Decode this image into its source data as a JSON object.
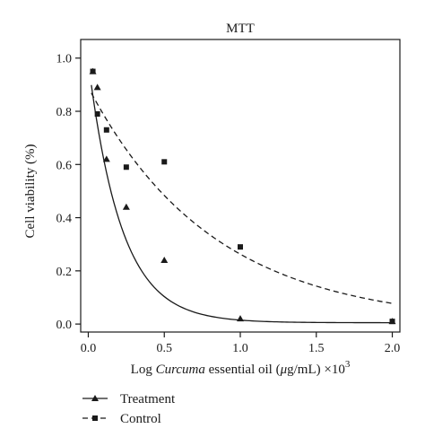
{
  "chart_data": {
    "type": "scatter",
    "title": "MTT",
    "xlabel": {
      "prefix": "Log ",
      "italic": "Curcuma",
      "middle": " essential oil (",
      "mu": "μ",
      "unit": "g/mL) ×10",
      "exponent": "3"
    },
    "ylabel": "Cell viability (%)",
    "xlim": [
      -0.05,
      2.05
    ],
    "ylim": [
      -0.03,
      1.07
    ],
    "xticks": [
      "0.0",
      "0.5",
      "1.0",
      "1.5",
      "2.0"
    ],
    "yticks": [
      "0.0",
      "0.2",
      "0.4",
      "0.6",
      "0.8",
      "1.0"
    ],
    "grid": false,
    "legend_position": "below-left",
    "series": [
      {
        "name": "Treatment",
        "marker": "triangle",
        "line": "solid",
        "points": [
          {
            "x": 0.03,
            "y": 0.95
          },
          {
            "x": 0.06,
            "y": 0.89
          },
          {
            "x": 0.12,
            "y": 0.62
          },
          {
            "x": 0.25,
            "y": 0.44
          },
          {
            "x": 0.5,
            "y": 0.24
          },
          {
            "x": 1.0,
            "y": 0.02
          },
          {
            "x": 2.0,
            "y": 0.01
          }
        ],
        "fit": {
          "a": 0.98,
          "k": 4.6,
          "c": 0.005
        }
      },
      {
        "name": "Control",
        "marker": "square",
        "line": "dashed",
        "points": [
          {
            "x": 0.03,
            "y": 0.95
          },
          {
            "x": 0.06,
            "y": 0.79
          },
          {
            "x": 0.12,
            "y": 0.73
          },
          {
            "x": 0.25,
            "y": 0.59
          },
          {
            "x": 0.5,
            "y": 0.61
          },
          {
            "x": 1.0,
            "y": 0.29
          },
          {
            "x": 2.0,
            "y": 0.01
          }
        ],
        "fit": {
          "a": 0.89,
          "k": 1.22,
          "c": 0.0
        }
      }
    ]
  }
}
